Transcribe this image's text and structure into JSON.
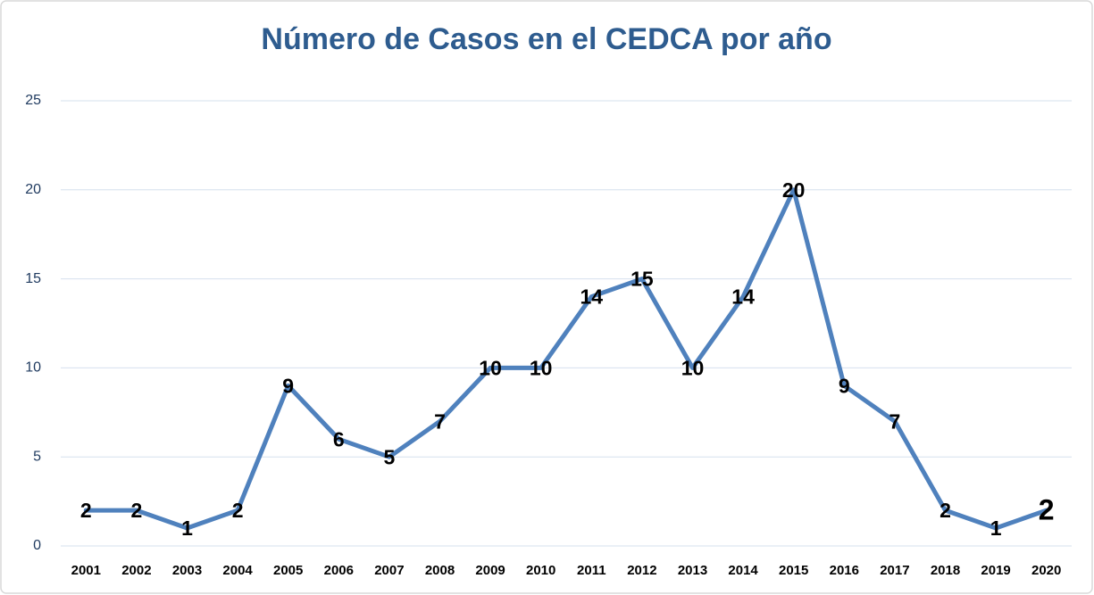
{
  "chart_data": {
    "type": "line",
    "title": "Número de Casos en el CEDCA por año",
    "categories": [
      "2001",
      "2002",
      "2003",
      "2004",
      "2005",
      "2006",
      "2007",
      "2008",
      "2009",
      "2010",
      "2011",
      "2012",
      "2013",
      "2014",
      "2015",
      "2016",
      "2017",
      "2018",
      "2019",
      "2020"
    ],
    "series": [
      {
        "name": "Casos",
        "color": "#4f81bd",
        "values": [
          2,
          2,
          1,
          2,
          9,
          6,
          5,
          7,
          10,
          10,
          14,
          15,
          10,
          14,
          20,
          9,
          7,
          2,
          1,
          2
        ]
      }
    ],
    "ylim": [
      0,
      25
    ],
    "yticks": [
      0,
      5,
      10,
      15,
      20,
      25
    ],
    "grid": true
  }
}
